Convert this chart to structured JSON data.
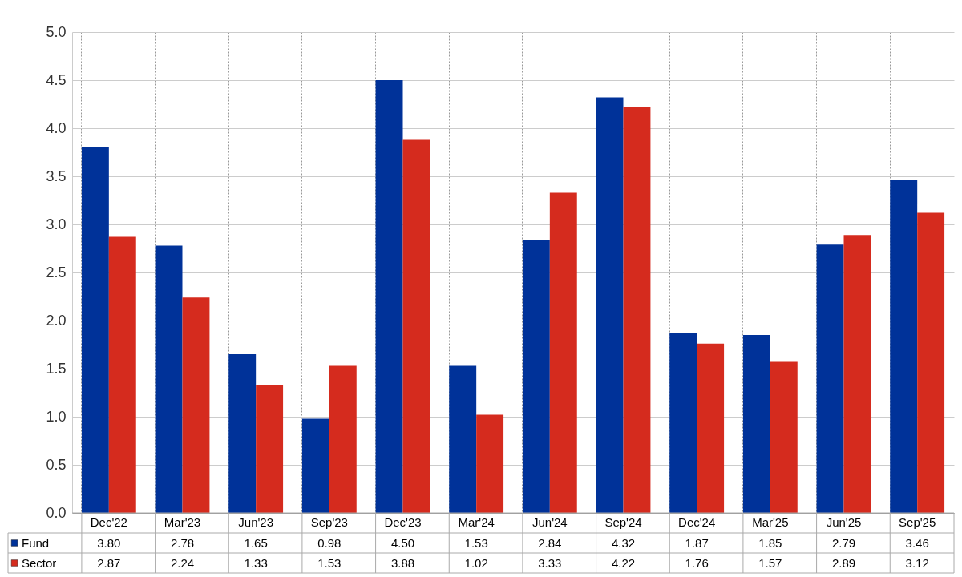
{
  "chart_data": {
    "type": "bar",
    "categories": [
      "Dec'22",
      "Mar'23",
      "Jun'23",
      "Sep'23",
      "Dec'23",
      "Mar'24",
      "Jun'24",
      "Sep'24",
      "Dec'24",
      "Mar'25",
      "Jun'25",
      "Sep'25"
    ],
    "series": [
      {
        "name": "Fund",
        "color": "#003299",
        "values": [
          3.8,
          2.78,
          1.65,
          0.98,
          4.5,
          1.53,
          2.84,
          4.32,
          1.87,
          1.85,
          2.79,
          3.46
        ],
        "value_labels": [
          "3.80",
          "2.78",
          "1.65",
          "0.98",
          "4.50",
          "1.53",
          "2.84",
          "4.32",
          "1.87",
          "1.85",
          "2.79",
          "3.46"
        ]
      },
      {
        "name": "Sector",
        "color": "#d52b1e",
        "values": [
          2.87,
          2.24,
          1.33,
          1.53,
          3.88,
          1.02,
          3.33,
          4.22,
          1.76,
          1.57,
          2.89,
          3.12
        ],
        "value_labels": [
          "2.87",
          "2.24",
          "1.33",
          "1.53",
          "3.88",
          "1.02",
          "3.33",
          "4.22",
          "1.76",
          "1.57",
          "2.89",
          "3.12"
        ]
      }
    ],
    "ylim": [
      0,
      5
    ],
    "yticks": [
      {
        "value": 0,
        "label": "0.0"
      },
      {
        "value": 0.5,
        "label": "0.5"
      },
      {
        "value": 1,
        "label": "1.0"
      },
      {
        "value": 1.5,
        "label": "1.5"
      },
      {
        "value": 2,
        "label": "2.0"
      },
      {
        "value": 2.5,
        "label": "2.5"
      },
      {
        "value": 3,
        "label": "3.0"
      },
      {
        "value": 3.5,
        "label": "3.5"
      },
      {
        "value": 4,
        "label": "4.0"
      },
      {
        "value": 4.5,
        "label": "4.5"
      },
      {
        "value": 5,
        "label": "5.0"
      }
    ],
    "grid": true,
    "legend": "bottom"
  }
}
